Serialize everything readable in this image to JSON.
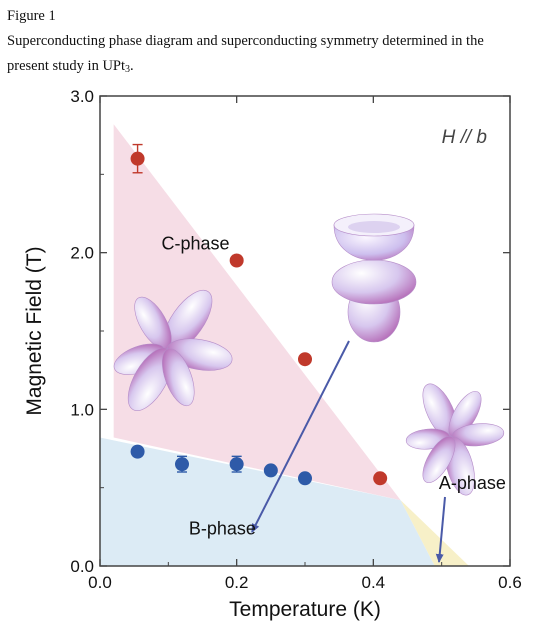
{
  "caption": {
    "figure_label": "Figure 1",
    "line1": "Superconducting phase diagram and superconducting symmetry determined in the",
    "line2_prefix": "present study in UPt",
    "line2_sub": "3",
    "line2_suffix": "."
  },
  "chart_data": {
    "type": "scatter",
    "xlabel": "Temperature (K)",
    "ylabel": "Magnetic Field (T)",
    "xlim": [
      0.0,
      0.6
    ],
    "ylim": [
      0.0,
      3.0
    ],
    "xticks": [
      "0.0",
      "0.2",
      "0.4",
      "0.6"
    ],
    "yticks": [
      "0.0",
      "1.0",
      "2.0",
      "3.0"
    ],
    "grid": false,
    "annotation": "H // b",
    "series": [
      {
        "color": "#c0392b",
        "points": [
          {
            "x": 0.055,
            "y": 2.6,
            "err": 0.09
          },
          {
            "x": 0.2,
            "y": 1.95
          },
          {
            "x": 0.3,
            "y": 1.32
          },
          {
            "x": 0.41,
            "y": 0.56
          }
        ]
      },
      {
        "color": "#2e5aa8",
        "points": [
          {
            "x": 0.055,
            "y": 0.73
          },
          {
            "x": 0.12,
            "y": 0.65,
            "err": 0.05
          },
          {
            "x": 0.2,
            "y": 0.65,
            "err": 0.05
          },
          {
            "x": 0.25,
            "y": 0.61
          },
          {
            "x": 0.3,
            "y": 0.56
          }
        ]
      }
    ],
    "phase_labels": [
      {
        "text": "C-phase",
        "x": 0.09,
        "y": 2.02
      },
      {
        "text": "B-phase",
        "x": 0.13,
        "y": 0.2
      },
      {
        "text": "A-phase",
        "x": 0.545,
        "y": 0.49
      }
    ],
    "regions": [
      {
        "name": "C-phase",
        "color": "#f6dde6",
        "polygon": [
          [
            0.02,
            2.82
          ],
          [
            0.02,
            0.82
          ],
          [
            0.44,
            0.42
          ]
        ]
      },
      {
        "name": "B-phase",
        "color": "#dcebf5",
        "polygon": [
          [
            0.0,
            0.0
          ],
          [
            0.0,
            0.82
          ],
          [
            0.44,
            0.42
          ],
          [
            0.49,
            0.0
          ]
        ]
      },
      {
        "name": "A-phase",
        "color": "#f7f0c8",
        "polygon": [
          [
            0.44,
            0.42
          ],
          [
            0.49,
            0.0
          ],
          [
            0.54,
            0.0
          ]
        ]
      }
    ]
  }
}
